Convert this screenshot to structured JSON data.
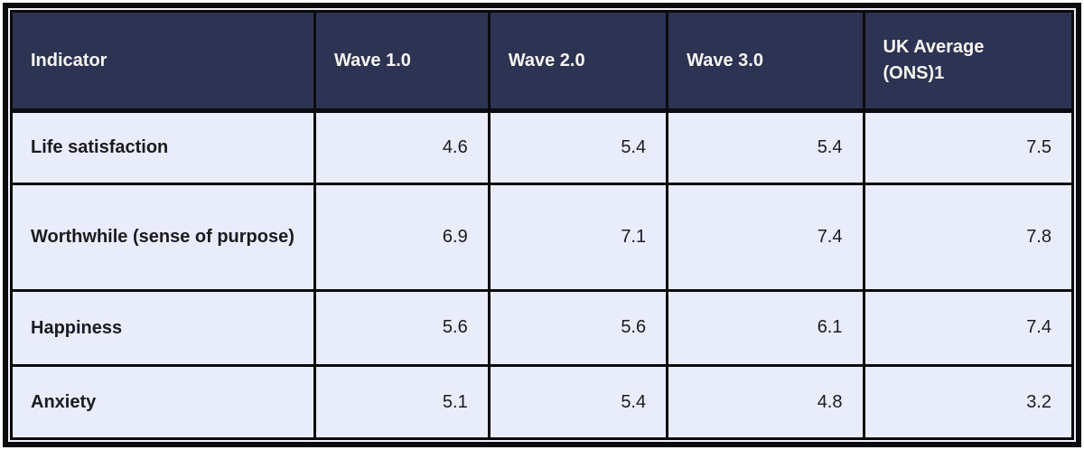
{
  "colors": {
    "header_bg": "#2d3453",
    "body_bg": "#e9edfb",
    "border": "#0b0b0e",
    "header_text": "#f7f6f2",
    "body_text": "#1a1a1f"
  },
  "table": {
    "columns": [
      "Indicator",
      "Wave 1.0",
      "Wave 2.0",
      "Wave 3.0",
      "UK Average (ONS)1"
    ],
    "rows": [
      {
        "indicator": "Life satisfaction",
        "values": [
          "4.6",
          "5.4",
          "5.4",
          "7.5"
        ]
      },
      {
        "indicator": "Worthwhile (sense of purpose)",
        "values": [
          "6.9",
          "7.1",
          "7.4",
          "7.8"
        ]
      },
      {
        "indicator": "Happiness",
        "values": [
          "5.6",
          "5.6",
          "6.1",
          "7.4"
        ]
      },
      {
        "indicator": "Anxiety",
        "values": [
          "5.1",
          "5.4",
          "4.8",
          "3.2"
        ]
      }
    ]
  },
  "chart_data": {
    "type": "table",
    "columns": [
      "Indicator",
      "Wave 1.0",
      "Wave 2.0",
      "Wave 3.0",
      "UK Average (ONS)1"
    ],
    "rows": [
      [
        "Life satisfaction",
        4.6,
        5.4,
        5.4,
        7.5
      ],
      [
        "Worthwhile (sense of purpose)",
        6.9,
        7.1,
        7.4,
        7.8
      ],
      [
        "Happiness",
        5.6,
        5.6,
        6.1,
        7.4
      ],
      [
        "Anxiety",
        5.1,
        5.4,
        4.8,
        3.2
      ]
    ]
  }
}
